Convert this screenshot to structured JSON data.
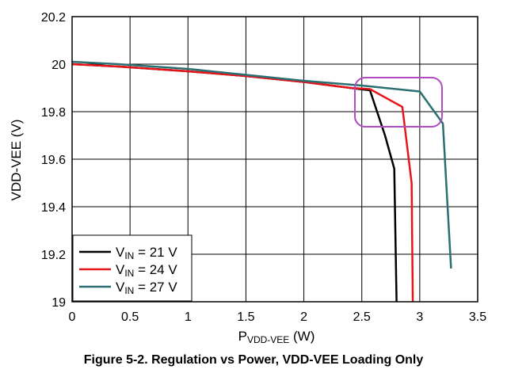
{
  "caption": "Figure 5-2. Regulation vs Power, VDD-VEE Loading Only",
  "chart_data": {
    "type": "line",
    "xlabel": "P",
    "xlabel_sub": "VDD-VEE",
    "xlabel_unit": " (W)",
    "ylabel": "VDD-VEE (V)",
    "xlim": [
      0,
      3.5
    ],
    "ylim": [
      19,
      20.2
    ],
    "xticks": [
      0,
      0.5,
      1,
      1.5,
      2,
      2.5,
      3,
      3.5
    ],
    "xtick_labels": [
      "0",
      "0.5",
      "1",
      "1.5",
      "2",
      "2.5",
      "3",
      "3.5"
    ],
    "yticks": [
      19,
      19.2,
      19.4,
      19.6,
      19.8,
      20,
      20.2
    ],
    "ytick_labels": [
      "19",
      "19.2",
      "19.4",
      "19.6",
      "19.8",
      "20",
      "20.2"
    ],
    "grid": true,
    "legend_position": "bottom-left",
    "series": [
      {
        "name": "V",
        "name_sub": "IN",
        "name_suffix": " = 21 V",
        "color": "#000000",
        "x": [
          0,
          0.4,
          1.0,
          1.5,
          2.0,
          2.4,
          2.57,
          2.7,
          2.78,
          2.8
        ],
        "y": [
          20.0,
          19.99,
          19.97,
          19.95,
          19.925,
          19.9,
          19.89,
          19.7,
          19.56,
          19.0
        ]
      },
      {
        "name": "V",
        "name_sub": "IN",
        "name_suffix": " = 24 V",
        "color": "#e8141a",
        "x": [
          0,
          0.4,
          1.0,
          1.5,
          2.0,
          2.4,
          2.57,
          2.85,
          2.93,
          2.94
        ],
        "y": [
          20.0,
          19.99,
          19.97,
          19.95,
          19.925,
          19.9,
          19.895,
          19.82,
          19.5,
          19.0
        ]
      },
      {
        "name": "V",
        "name_sub": "IN",
        "name_suffix": " = 27 V",
        "color": "#2a6f72",
        "x": [
          0,
          0.4,
          1.0,
          1.5,
          2.0,
          2.5,
          3.0,
          3.2,
          3.27
        ],
        "y": [
          20.01,
          20.0,
          19.98,
          19.955,
          19.93,
          19.91,
          19.885,
          19.75,
          19.14
        ]
      }
    ],
    "annotation_highlight_color": "#b04bc0"
  }
}
